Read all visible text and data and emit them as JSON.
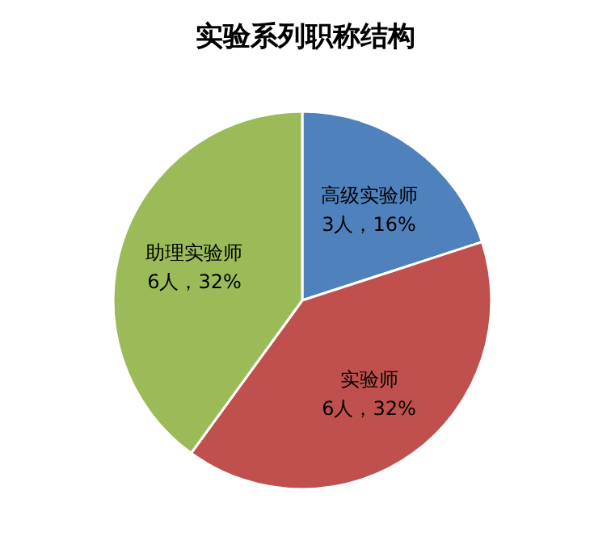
{
  "chart_data": {
    "type": "pie",
    "title": "实验系列职称结构",
    "categories": [
      "高级实验师",
      "实验师",
      "助理实验师"
    ],
    "values": [
      3,
      6,
      6
    ],
    "colors": [
      "#4f81bd",
      "#c0504d",
      "#9bbb59"
    ],
    "value_labels": [
      "3人，16%",
      "6人，32%",
      "6人，32%"
    ]
  }
}
